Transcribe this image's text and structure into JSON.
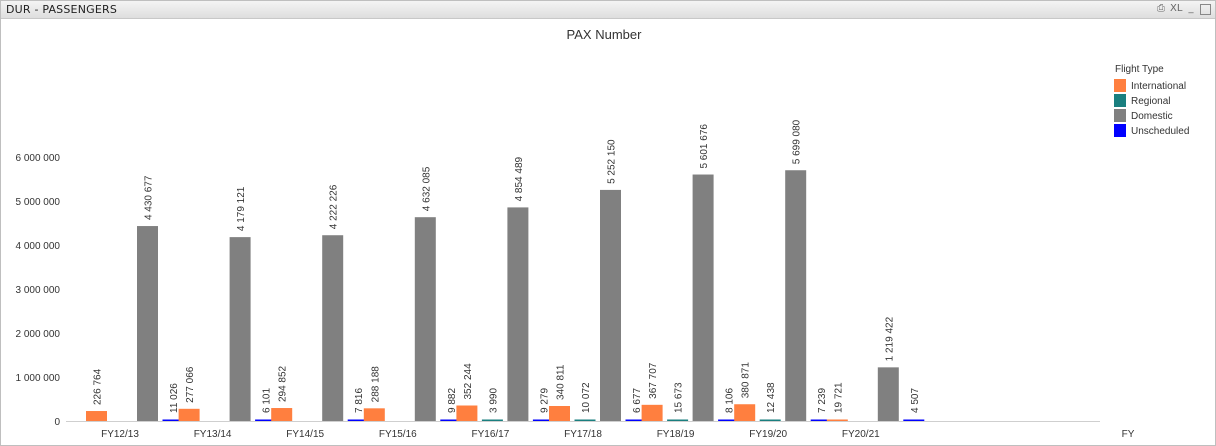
{
  "window": {
    "title": "DUR - PASSENGERS"
  },
  "toolbar": {
    "print_icon": "printer-icon",
    "excel_label": "XL",
    "minus_label": "_",
    "maximize_icon": "maximize-icon"
  },
  "chart_data": {
    "type": "bar",
    "title": "PAX Number",
    "xlabel": "FY",
    "ylabel": "",
    "ylim": [
      0,
      6500000
    ],
    "yticks": [
      0,
      1000000,
      2000000,
      3000000,
      4000000,
      5000000,
      6000000
    ],
    "ytick_labels": [
      "0",
      "1 000 000",
      "2 000 000",
      "3 000 000",
      "4 000 000",
      "5 000 000",
      "6 000 000"
    ],
    "grid": false,
    "legend_placement": "top-right",
    "legend_title": "Flight Type",
    "categories": [
      "FY12/13",
      "FY13/14",
      "FY14/15",
      "FY15/16",
      "FY16/17",
      "FY17/18",
      "FY18/19",
      "FY19/20",
      "FY20/21"
    ],
    "series": [
      {
        "name": "International",
        "color": "#ff7f3f",
        "values": [
          226764,
          277066,
          294852,
          288188,
          352244,
          340811,
          367707,
          380871,
          19721
        ],
        "labels": [
          "226 764",
          "277 066",
          "294 852",
          "288 188",
          "352 244",
          "340 811",
          "367 707",
          "380 871",
          "19 721"
        ]
      },
      {
        "name": "Regional",
        "color": "#1a7f7f",
        "values": [
          null,
          null,
          null,
          null,
          3990,
          10072,
          15673,
          12438,
          null
        ],
        "labels": [
          "",
          "",
          "",
          "",
          "3 990",
          "10 072",
          "15 673",
          "12 438",
          ""
        ]
      },
      {
        "name": "Domestic",
        "color": "#808080",
        "values": [
          4430677,
          4179121,
          4222226,
          4632085,
          4854489,
          5252150,
          5601676,
          5699080,
          1219422
        ],
        "labels": [
          "4 430 677",
          "4 179 121",
          "4 222 226",
          "4 632 085",
          "4 854 489",
          "5 252 150",
          "5 601 676",
          "5 699 080",
          "1 219 422"
        ]
      },
      {
        "name": "Unscheduled",
        "color": "#0000ff",
        "values": [
          11026,
          6101,
          7816,
          9882,
          9279,
          6677,
          8106,
          7239,
          4507
        ],
        "labels": [
          "11 026",
          "6 101",
          "7 816",
          "9 882",
          "9 279",
          "6 677",
          "8 106",
          "7 239",
          "4 507"
        ]
      }
    ]
  }
}
